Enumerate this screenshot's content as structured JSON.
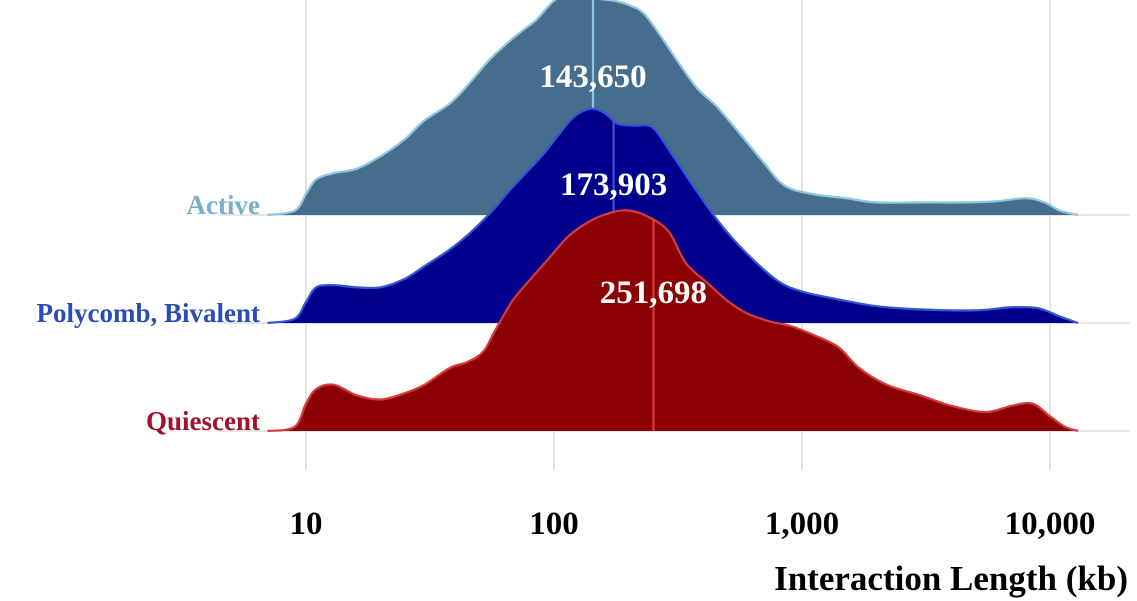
{
  "chart_data": {
    "type": "ridgeline",
    "title": "",
    "xlabel": "Interaction Length (kb)",
    "ylabel": "",
    "x_scale": "log10",
    "xlim": [
      7,
      14000
    ],
    "x_ticks": [
      10,
      100,
      1000,
      10000
    ],
    "x_tick_labels": [
      "10",
      "100",
      "1,000",
      "10,000"
    ],
    "grid": "vertical major gridlines",
    "series": [
      {
        "name": "Active",
        "label_color": "#78AECA",
        "fill_color": "#466E8C",
        "line_color": "#8CC8E0",
        "median_kb": 143.65,
        "median_label": "143,650",
        "density": [
          [
            7,
            0
          ],
          [
            9,
            0.02
          ],
          [
            10,
            0.1
          ],
          [
            11,
            0.17
          ],
          [
            13,
            0.2
          ],
          [
            16,
            0.22
          ],
          [
            20,
            0.28
          ],
          [
            25,
            0.36
          ],
          [
            30,
            0.45
          ],
          [
            38,
            0.53
          ],
          [
            45,
            0.62
          ],
          [
            55,
            0.74
          ],
          [
            65,
            0.82
          ],
          [
            75,
            0.88
          ],
          [
            85,
            0.93
          ],
          [
            100,
            1.02
          ],
          [
            115,
            1.05
          ],
          [
            130,
            1.04
          ],
          [
            150,
            1.03
          ],
          [
            175,
            1.02
          ],
          [
            200,
            1.0
          ],
          [
            230,
            0.96
          ],
          [
            270,
            0.85
          ],
          [
            320,
            0.72
          ],
          [
            380,
            0.6
          ],
          [
            450,
            0.52
          ],
          [
            550,
            0.4
          ],
          [
            700,
            0.25
          ],
          [
            850,
            0.14
          ],
          [
            1100,
            0.1
          ],
          [
            1500,
            0.08
          ],
          [
            2000,
            0.06
          ],
          [
            3000,
            0.06
          ],
          [
            4500,
            0.06
          ],
          [
            6000,
            0.065
          ],
          [
            8000,
            0.08
          ],
          [
            9500,
            0.06
          ],
          [
            11000,
            0.02
          ],
          [
            13000,
            0
          ]
        ]
      },
      {
        "name": "Polycomb, Bivalent",
        "label_color": "#2A4CB5",
        "fill_color": "#00008C",
        "line_color": "#3355D8",
        "median_kb": 173.903,
        "median_label": "173,903",
        "density": [
          [
            7,
            0
          ],
          [
            9,
            0.02
          ],
          [
            10,
            0.1
          ],
          [
            11,
            0.17
          ],
          [
            13,
            0.18
          ],
          [
            16,
            0.17
          ],
          [
            20,
            0.17
          ],
          [
            25,
            0.21
          ],
          [
            30,
            0.27
          ],
          [
            38,
            0.35
          ],
          [
            45,
            0.42
          ],
          [
            55,
            0.52
          ],
          [
            65,
            0.62
          ],
          [
            75,
            0.7
          ],
          [
            90,
            0.8
          ],
          [
            105,
            0.9
          ],
          [
            120,
            0.98
          ],
          [
            140,
            1.02
          ],
          [
            160,
            1.0
          ],
          [
            180,
            0.95
          ],
          [
            210,
            0.94
          ],
          [
            250,
            0.93
          ],
          [
            300,
            0.8
          ],
          [
            380,
            0.62
          ],
          [
            470,
            0.47
          ],
          [
            600,
            0.33
          ],
          [
            800,
            0.2
          ],
          [
            1000,
            0.15
          ],
          [
            1300,
            0.12
          ],
          [
            2000,
            0.08
          ],
          [
            3000,
            0.065
          ],
          [
            5000,
            0.06
          ],
          [
            7000,
            0.075
          ],
          [
            9000,
            0.07
          ],
          [
            11000,
            0.03
          ],
          [
            13000,
            0
          ]
        ]
      },
      {
        "name": "Quiescent",
        "label_color": "#A1102D",
        "fill_color": "#8B0000",
        "line_color": "#D93A3A",
        "median_kb": 251.698,
        "median_label": "251,698",
        "density": [
          [
            7,
            0
          ],
          [
            9,
            0.02
          ],
          [
            10,
            0.13
          ],
          [
            11,
            0.2
          ],
          [
            13,
            0.22
          ],
          [
            16,
            0.17
          ],
          [
            20,
            0.15
          ],
          [
            25,
            0.18
          ],
          [
            30,
            0.22
          ],
          [
            38,
            0.3
          ],
          [
            45,
            0.33
          ],
          [
            52,
            0.38
          ],
          [
            58,
            0.48
          ],
          [
            68,
            0.62
          ],
          [
            80,
            0.72
          ],
          [
            95,
            0.82
          ],
          [
            115,
            0.93
          ],
          [
            140,
            1.0
          ],
          [
            170,
            1.04
          ],
          [
            200,
            1.05
          ],
          [
            240,
            1.02
          ],
          [
            290,
            0.95
          ],
          [
            340,
            0.8
          ],
          [
            420,
            0.7
          ],
          [
            500,
            0.62
          ],
          [
            600,
            0.56
          ],
          [
            750,
            0.52
          ],
          [
            900,
            0.5
          ],
          [
            1100,
            0.46
          ],
          [
            1400,
            0.4
          ],
          [
            1700,
            0.3
          ],
          [
            2200,
            0.22
          ],
          [
            3000,
            0.17
          ],
          [
            4000,
            0.12
          ],
          [
            5500,
            0.09
          ],
          [
            7000,
            0.12
          ],
          [
            8500,
            0.13
          ],
          [
            10000,
            0.07
          ],
          [
            11500,
            0.02
          ],
          [
            13000,
            0
          ]
        ]
      }
    ]
  }
}
